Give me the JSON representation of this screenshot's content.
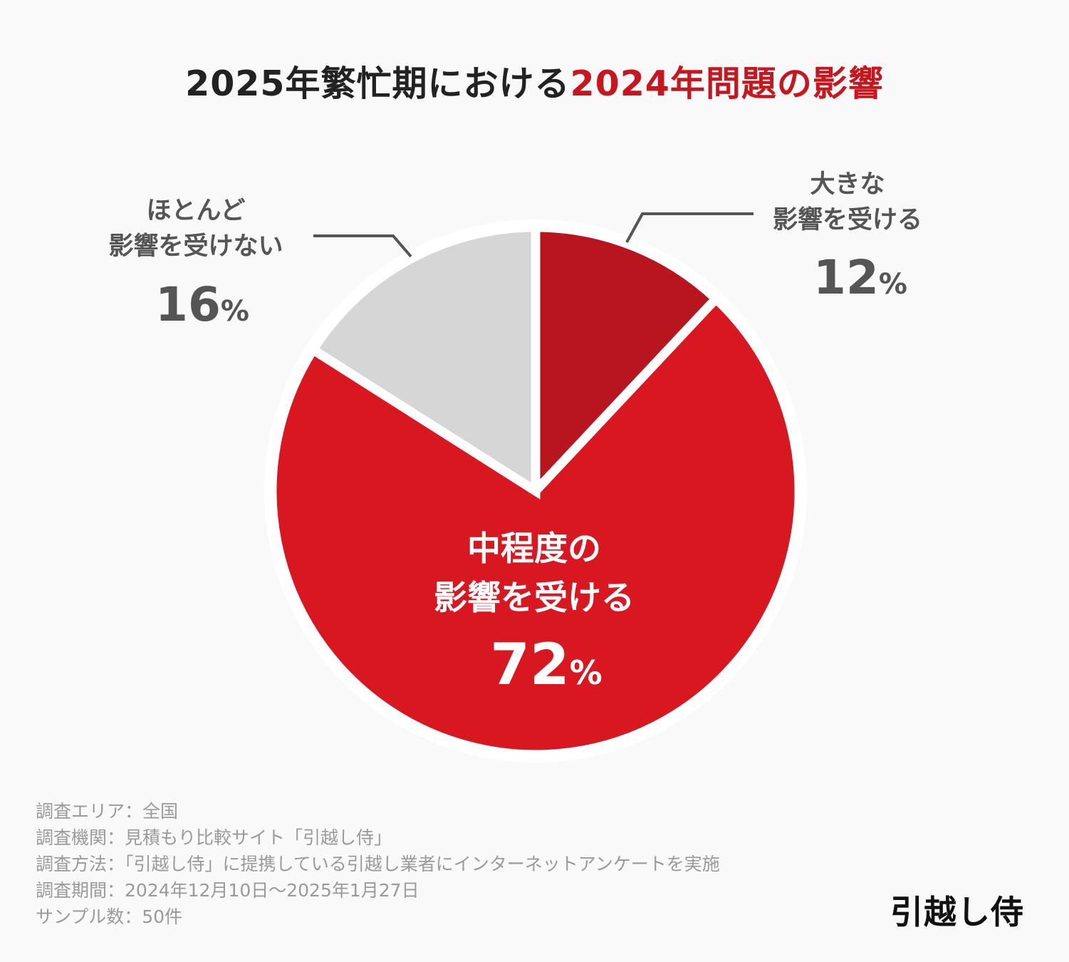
{
  "title": {
    "part1": "2025年繁忙期における",
    "part2": "2024年問題の影響"
  },
  "chart_data": {
    "type": "pie",
    "title": "2025年繁忙期における2024年問題の影響",
    "slices": [
      {
        "label_lines": [
          "大きな",
          "影響を受ける"
        ],
        "value": 12,
        "display": "12%",
        "color": "#b8151e",
        "label_color": "#555555"
      },
      {
        "label_lines": [
          "中程度の",
          "影響を受ける"
        ],
        "value": 72,
        "display": "72%",
        "color": "#d91720",
        "label_color": "#ffffff"
      },
      {
        "label_lines": [
          "ほとんど",
          "影響を受けない"
        ],
        "value": 16,
        "display": "16%",
        "color": "#d6d6d6",
        "label_color": "#555555"
      }
    ],
    "start_angle": "12 o'clock",
    "direction": "clockwise",
    "unit": "%"
  },
  "notes": [
    "調査エリア：全国",
    "調査機関：見積もり比較サイト「引越し侍」",
    "調査方法：「引越し侍」に提携している引越し業者にインターネットアンケートを実施",
    "調査期間：2024年12月10日～2025年1月27日",
    "サンプル数：50件"
  ],
  "logo": "引越し侍"
}
